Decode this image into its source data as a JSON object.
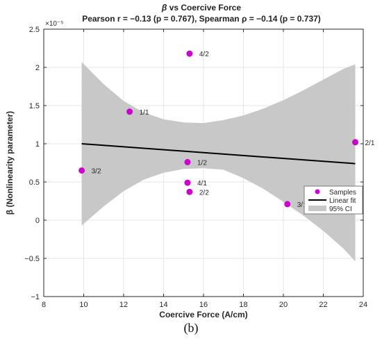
{
  "chart_data": {
    "type": "scatter",
    "title_line1_parts": [
      "β",
      " vs  Coercive  Force"
    ],
    "title_line2": "Pearson  r = −0.13  (p = 0.767),  Spearman  ρ = −0.14  (p = 0.737)",
    "xlabel": "Coercive Force (A/cm)",
    "ylabel": "β (Nonlinearity parameter)",
    "y_exponent_label": "×10⁻⁵",
    "xlim": [
      8,
      24
    ],
    "ylim": [
      -1,
      2.5
    ],
    "x_ticks": [
      8,
      10,
      12,
      14,
      16,
      18,
      20,
      22,
      24
    ],
    "y_ticks": [
      -1,
      -0.5,
      0,
      0.5,
      1,
      1.5,
      2,
      2.5
    ],
    "x_tick_labels": [
      "8",
      "10",
      "12",
      "14",
      "16",
      "18",
      "20",
      "22",
      "24"
    ],
    "y_tick_labels": [
      "−1",
      "−0.5",
      "0",
      "0.5",
      "1",
      "1.5",
      "2",
      "2.5"
    ],
    "grid": true,
    "points": [
      {
        "x": 15.3,
        "y": 2.18,
        "label": "4/2"
      },
      {
        "x": 12.3,
        "y": 1.42,
        "label": "1/1"
      },
      {
        "x": 23.6,
        "y": 1.02,
        "label": "2/1"
      },
      {
        "x": 15.2,
        "y": 0.76,
        "label": "1/2"
      },
      {
        "x": 9.9,
        "y": 0.65,
        "label": "3/2"
      },
      {
        "x": 15.2,
        "y": 0.49,
        "label": "4/1"
      },
      {
        "x": 15.3,
        "y": 0.37,
        "label": "2/2"
      },
      {
        "x": 20.2,
        "y": 0.21,
        "label": "3/1"
      }
    ],
    "fit_line": {
      "x": [
        9.9,
        23.6
      ],
      "y": [
        1.0,
        0.74
      ]
    },
    "ci_band": {
      "x": [
        9.9,
        11.0,
        12.0,
        13.0,
        14.0,
        15.0,
        16.0,
        17.0,
        18.0,
        19.0,
        20.0,
        21.0,
        22.0,
        23.0,
        23.6
      ],
      "upper": [
        2.07,
        1.78,
        1.56,
        1.41,
        1.32,
        1.28,
        1.27,
        1.31,
        1.37,
        1.46,
        1.57,
        1.7,
        1.84,
        1.98,
        2.04
      ],
      "lower": [
        -0.07,
        0.18,
        0.38,
        0.53,
        0.62,
        0.67,
        0.68,
        0.66,
        0.55,
        0.41,
        0.24,
        0.06,
        -0.14,
        -0.37,
        -0.54
      ]
    },
    "legend": {
      "position": "right",
      "entries": [
        "Samples",
        "Linear fit",
        "95% CI"
      ]
    },
    "colors": {
      "points": "#cc00cc",
      "fit": "#000000",
      "ci": "#c8c8c8",
      "grid": "#e6e6e6",
      "axis": "#262626"
    }
  },
  "caption": "(b)"
}
